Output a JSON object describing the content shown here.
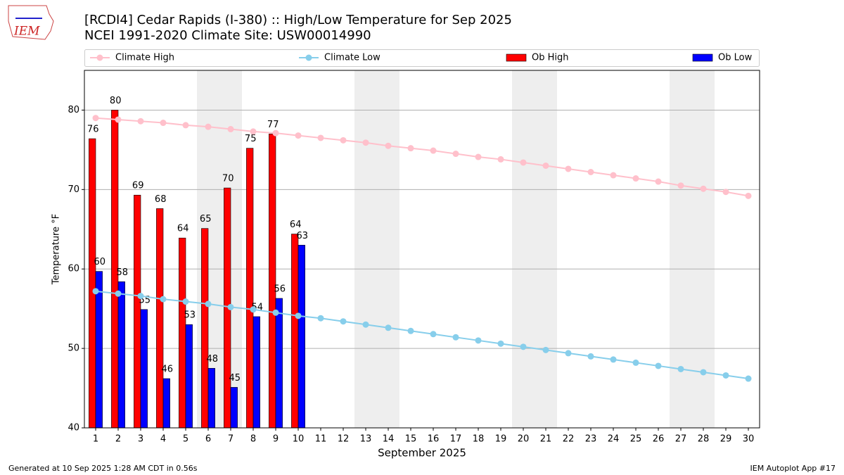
{
  "chart_data": {
    "type": "bar_line",
    "title": "[RCDI4] Cedar Rapids (I-380) :: High/Low Temperature for Sep 2025",
    "subtitle": "NCEI 1991-2020 Climate Site: USW00014990",
    "xlabel": "September 2025",
    "ylabel": "Temperature °F",
    "logo_text": "IEM",
    "footer_left": "Generated at 10 Sep 2025 1:28 AM CDT in 0.56s",
    "footer_right": "IEM Autoplot App #17",
    "legend": "top",
    "grid": true,
    "x": [
      1,
      2,
      3,
      4,
      5,
      6,
      7,
      8,
      9,
      10,
      11,
      12,
      13,
      14,
      15,
      16,
      17,
      18,
      19,
      20,
      21,
      22,
      23,
      24,
      25,
      26,
      27,
      28,
      29,
      30
    ],
    "xlim": [
      0.5,
      30.5
    ],
    "xticks": [
      1,
      2,
      3,
      4,
      5,
      6,
      7,
      8,
      9,
      10,
      11,
      12,
      13,
      14,
      15,
      16,
      17,
      18,
      19,
      20,
      21,
      22,
      23,
      24,
      25,
      26,
      27,
      28,
      29,
      30
    ],
    "ylim": [
      40,
      85
    ],
    "yticks": [
      40,
      50,
      60,
      70,
      80
    ],
    "series": [
      {
        "name": "Climate High",
        "kind": "line",
        "color": "#ffc0cb",
        "values": [
          79.0,
          78.8,
          78.6,
          78.4,
          78.1,
          77.9,
          77.6,
          77.3,
          77.1,
          76.8,
          76.5,
          76.2,
          75.9,
          75.5,
          75.2,
          74.9,
          74.5,
          74.1,
          73.8,
          73.4,
          73.0,
          72.6,
          72.2,
          71.8,
          71.4,
          71.0,
          70.5,
          70.1,
          69.7,
          69.2
        ]
      },
      {
        "name": "Climate Low",
        "kind": "line",
        "color": "#87ceeb",
        "values": [
          57.2,
          56.9,
          56.6,
          56.2,
          55.9,
          55.6,
          55.2,
          54.9,
          54.5,
          54.1,
          53.8,
          53.4,
          53.0,
          52.6,
          52.2,
          51.8,
          51.4,
          51.0,
          50.6,
          50.2,
          49.8,
          49.4,
          49.0,
          48.6,
          48.2,
          47.8,
          47.4,
          47.0,
          46.6,
          46.2
        ]
      },
      {
        "name": "Ob High",
        "kind": "bar",
        "color": "#ff0000",
        "values": [
          76.4,
          80.0,
          69.3,
          67.6,
          63.9,
          65.1,
          70.2,
          75.2,
          77.0,
          64.4,
          null,
          null,
          null,
          null,
          null,
          null,
          null,
          null,
          null,
          null,
          null,
          null,
          null,
          null,
          null,
          null,
          null,
          null,
          null,
          null
        ],
        "value_labels": [
          "76",
          "80",
          "69",
          "68",
          "64",
          "65",
          "70",
          "75",
          "77",
          "64",
          null,
          null,
          null,
          null,
          null,
          null,
          null,
          null,
          null,
          null,
          null,
          null,
          null,
          null,
          null,
          null,
          null,
          null,
          null,
          null
        ]
      },
      {
        "name": "Ob Low",
        "kind": "bar",
        "color": "#0000ff",
        "values": [
          59.7,
          58.4,
          54.9,
          46.2,
          53.0,
          47.5,
          45.1,
          54.0,
          56.3,
          63.0,
          null,
          null,
          null,
          null,
          null,
          null,
          null,
          null,
          null,
          null,
          null,
          null,
          null,
          null,
          null,
          null,
          null,
          null,
          null,
          null
        ],
        "value_labels": [
          "60",
          "58",
          "55",
          "46",
          "53",
          "48",
          "45",
          "54",
          "56",
          "63",
          null,
          null,
          null,
          null,
          null,
          null,
          null,
          null,
          null,
          null,
          null,
          null,
          null,
          null,
          null,
          null,
          null,
          null,
          null,
          null
        ]
      }
    ]
  }
}
